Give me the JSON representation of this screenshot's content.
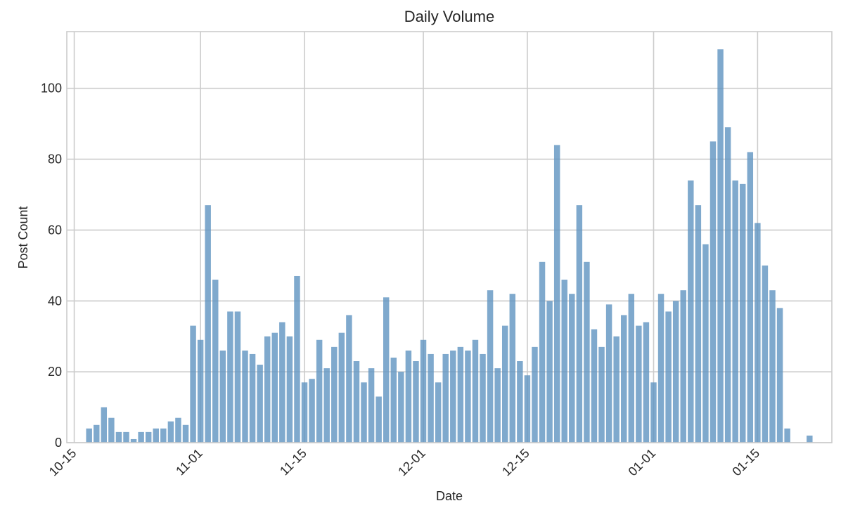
{
  "chart_data": {
    "type": "bar",
    "title": "Daily Volume",
    "xlabel": "Date",
    "ylabel": "Post Count",
    "ylim": [
      0,
      116
    ],
    "yticks": [
      0,
      20,
      40,
      60,
      80,
      100
    ],
    "xticks": [
      "10-15",
      "11-01",
      "11-15",
      "12-01",
      "12-15",
      "01-01",
      "01-15"
    ],
    "grid": true,
    "color": "#5f93c1",
    "x_range": [
      "2023-10-14",
      "2024-01-25"
    ],
    "x": [
      "2023-10-17",
      "2023-10-18",
      "2023-10-19",
      "2023-10-20",
      "2023-10-21",
      "2023-10-22",
      "2023-10-23",
      "2023-10-24",
      "2023-10-25",
      "2023-10-26",
      "2023-10-27",
      "2023-10-28",
      "2023-10-29",
      "2023-10-30",
      "2023-10-31",
      "2023-11-01",
      "2023-11-02",
      "2023-11-03",
      "2023-11-04",
      "2023-11-05",
      "2023-11-06",
      "2023-11-07",
      "2023-11-08",
      "2023-11-09",
      "2023-11-10",
      "2023-11-11",
      "2023-11-12",
      "2023-11-13",
      "2023-11-14",
      "2023-11-15",
      "2023-11-16",
      "2023-11-17",
      "2023-11-18",
      "2023-11-19",
      "2023-11-20",
      "2023-11-21",
      "2023-11-22",
      "2023-11-23",
      "2023-11-24",
      "2023-11-25",
      "2023-11-26",
      "2023-11-27",
      "2023-11-28",
      "2023-11-29",
      "2023-11-30",
      "2023-12-01",
      "2023-12-02",
      "2023-12-03",
      "2023-12-04",
      "2023-12-05",
      "2023-12-06",
      "2023-12-07",
      "2023-12-08",
      "2023-12-09",
      "2023-12-10",
      "2023-12-11",
      "2023-12-12",
      "2023-12-13",
      "2023-12-14",
      "2023-12-15",
      "2023-12-16",
      "2023-12-17",
      "2023-12-18",
      "2023-12-19",
      "2023-12-20",
      "2023-12-21",
      "2023-12-22",
      "2023-12-23",
      "2023-12-24",
      "2023-12-25",
      "2023-12-26",
      "2023-12-27",
      "2023-12-28",
      "2023-12-29",
      "2023-12-30",
      "2023-12-31",
      "2024-01-01",
      "2024-01-02",
      "2024-01-03",
      "2024-01-04",
      "2024-01-05",
      "2024-01-06",
      "2024-01-07",
      "2024-01-08",
      "2024-01-09",
      "2024-01-10",
      "2024-01-11",
      "2024-01-12",
      "2024-01-13",
      "2024-01-14",
      "2024-01-15",
      "2024-01-16",
      "2024-01-17",
      "2024-01-18",
      "2024-01-19",
      "2024-01-20",
      "2024-01-22"
    ],
    "values": [
      4,
      5,
      10,
      7,
      3,
      3,
      1,
      3,
      3,
      4,
      4,
      6,
      7,
      5,
      33,
      29,
      67,
      46,
      26,
      37,
      37,
      26,
      25,
      22,
      30,
      31,
      34,
      30,
      47,
      17,
      18,
      29,
      21,
      27,
      31,
      36,
      23,
      17,
      21,
      13,
      41,
      24,
      20,
      26,
      23,
      29,
      25,
      17,
      25,
      26,
      27,
      26,
      29,
      25,
      43,
      21,
      33,
      42,
      23,
      19,
      27,
      51,
      40,
      84,
      46,
      42,
      67,
      51,
      32,
      27,
      39,
      30,
      36,
      42,
      33,
      34,
      17,
      42,
      37,
      40,
      43,
      74,
      67,
      56,
      85,
      111,
      89,
      74,
      73,
      82,
      62,
      50,
      43,
      38,
      4,
      0,
      2
    ]
  }
}
